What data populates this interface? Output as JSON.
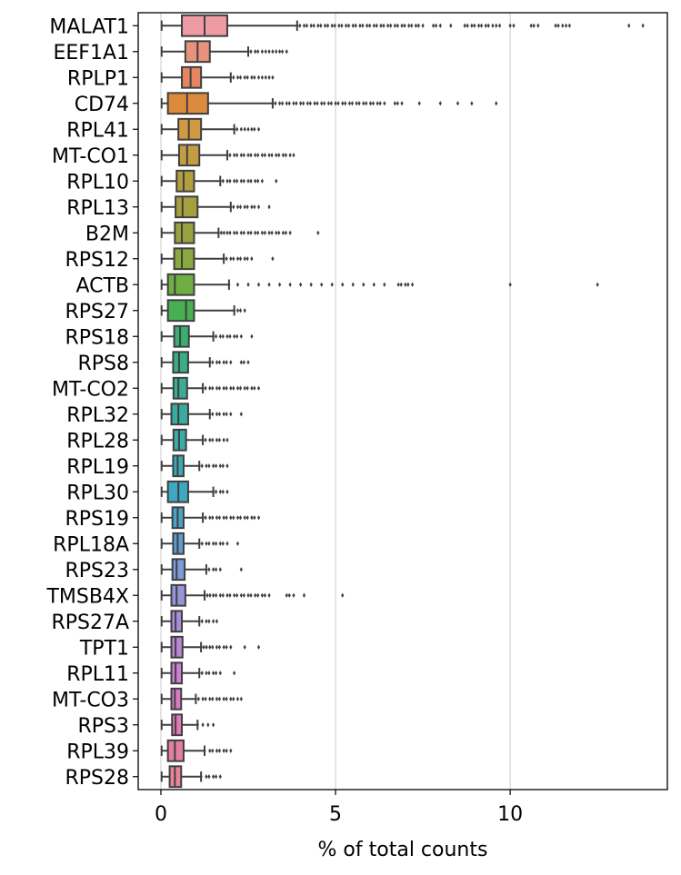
{
  "chart_data": {
    "type": "box",
    "orientation": "horizontal",
    "title": "",
    "xlabel": "% of total counts",
    "ylabel": "",
    "xlim": [
      -0.65,
      14.5
    ],
    "xticks": [
      0,
      5,
      10
    ],
    "grid": "vertical",
    "legend": "none",
    "categories": [
      "MALAT1",
      "EEF1A1",
      "RPLP1",
      "CD74",
      "RPL41",
      "MT-CO1",
      "RPL10",
      "RPL13",
      "B2M",
      "RPS12",
      "ACTB",
      "RPS27",
      "RPS18",
      "RPS8",
      "MT-CO2",
      "RPL32",
      "RPL28",
      "RPL19",
      "RPL30",
      "RPS19",
      "RPL18A",
      "RPS23",
      "TMSB4X",
      "RPS27A",
      "TPT1",
      "RPL11",
      "MT-CO3",
      "RPS3",
      "RPL39",
      "RPS28"
    ],
    "boxes": [
      {
        "whisker_low": 0.02,
        "q1": 0.6,
        "median": 1.25,
        "q3": 1.9,
        "whisker_high": 3.9,
        "color": "#ee9ba3",
        "outliers": [
          3.9,
          4.1,
          4.3,
          4.5,
          4.7,
          4.9,
          5.1,
          5.3,
          5.5,
          5.7,
          5.9,
          6.1,
          6.3,
          6.5,
          6.7,
          6.9,
          7.1,
          7.3,
          7.5,
          7.8,
          8.0,
          8.3,
          8.7,
          8.9,
          9.1,
          9.3,
          9.5,
          9.6,
          9.7,
          10.0,
          10.1,
          10.6,
          10.8,
          11.3,
          11.5,
          11.6,
          11.7,
          13.4,
          13.8
        ]
      },
      {
        "whisker_low": 0.02,
        "q1": 0.7,
        "median": 1.05,
        "q3": 1.4,
        "whisker_high": 2.5,
        "color": "#e8927e",
        "outliers": [
          2.5,
          2.7,
          2.9,
          3.0,
          3.1,
          3.2,
          3.3,
          3.4,
          3.6
        ]
      },
      {
        "whisker_low": 0.02,
        "q1": 0.6,
        "median": 0.85,
        "q3": 1.15,
        "whisker_high": 2.0,
        "color": "#e4865f",
        "outliers": [
          2.0,
          2.2,
          2.4,
          2.6,
          2.8,
          2.9,
          3.0,
          3.1,
          3.2
        ]
      },
      {
        "whisker_low": 0.02,
        "q1": 0.2,
        "median": 0.75,
        "q3": 1.35,
        "whisker_high": 3.2,
        "color": "#dc8a3d",
        "outliers": [
          3.2,
          3.4,
          3.6,
          3.8,
          4.0,
          4.2,
          4.4,
          4.6,
          4.8,
          5.0,
          5.2,
          5.4,
          5.6,
          5.8,
          6.0,
          6.2,
          6.4,
          6.7,
          6.9,
          7.4,
          8.0,
          8.5,
          8.9,
          9.6
        ]
      },
      {
        "whisker_low": 0.02,
        "q1": 0.5,
        "median": 0.8,
        "q3": 1.15,
        "whisker_high": 2.1,
        "color": "#d09a45",
        "outliers": [
          2.1,
          2.3,
          2.4,
          2.5,
          2.6,
          2.8
        ]
      },
      {
        "whisker_low": 0.02,
        "q1": 0.52,
        "median": 0.75,
        "q3": 1.1,
        "whisker_high": 1.9,
        "color": "#c39d42",
        "outliers": [
          1.9,
          2.1,
          2.3,
          2.5,
          2.7,
          2.9,
          3.1,
          3.3,
          3.5,
          3.7,
          3.8
        ]
      },
      {
        "whisker_low": 0.02,
        "q1": 0.45,
        "median": 0.65,
        "q3": 0.95,
        "whisker_high": 1.7,
        "color": "#b39e3e",
        "outliers": [
          1.7,
          1.9,
          2.1,
          2.3,
          2.5,
          2.7,
          2.9,
          3.3
        ]
      },
      {
        "whisker_low": 0.02,
        "q1": 0.42,
        "median": 0.62,
        "q3": 1.05,
        "whisker_high": 2.0,
        "color": "#a69f3e",
        "outliers": [
          2.0,
          2.2,
          2.4,
          2.6,
          2.8,
          3.1
        ]
      },
      {
        "whisker_low": 0.02,
        "q1": 0.4,
        "median": 0.6,
        "q3": 0.95,
        "whisker_high": 1.65,
        "color": "#98a23f",
        "outliers": [
          1.65,
          1.9,
          2.1,
          2.3,
          2.5,
          2.7,
          2.9,
          3.1,
          3.3,
          3.5,
          3.7,
          4.5
        ]
      },
      {
        "whisker_low": 0.02,
        "q1": 0.38,
        "median": 0.6,
        "q3": 0.95,
        "whisker_high": 1.8,
        "color": "#8aa83f",
        "outliers": [
          1.8,
          2.0,
          2.2,
          2.4,
          2.6,
          3.2
        ]
      },
      {
        "whisker_low": 0.02,
        "q1": 0.2,
        "median": 0.4,
        "q3": 0.95,
        "whisker_high": 1.95,
        "color": "#6fae42",
        "outliers": [
          1.95,
          2.2,
          2.5,
          2.8,
          3.1,
          3.4,
          3.7,
          4.0,
          4.3,
          4.6,
          4.9,
          5.2,
          5.5,
          5.8,
          6.1,
          6.4,
          6.8,
          7.0,
          7.2,
          10.0,
          12.5
        ]
      },
      {
        "whisker_low": 0.02,
        "q1": 0.2,
        "median": 0.72,
        "q3": 0.95,
        "whisker_high": 2.1,
        "color": "#46b053",
        "outliers": [
          2.1,
          2.2,
          2.4
        ]
      },
      {
        "whisker_low": 0.02,
        "q1": 0.38,
        "median": 0.55,
        "q3": 0.8,
        "whisker_high": 1.5,
        "color": "#3aaf72",
        "outliers": [
          1.5,
          1.7,
          1.9,
          2.1,
          2.3,
          2.6
        ]
      },
      {
        "whisker_low": 0.02,
        "q1": 0.35,
        "median": 0.52,
        "q3": 0.78,
        "whisker_high": 1.4,
        "color": "#39ae86",
        "outliers": [
          1.4,
          1.6,
          1.8,
          2.0,
          2.3,
          2.5
        ]
      },
      {
        "whisker_low": 0.02,
        "q1": 0.36,
        "median": 0.5,
        "q3": 0.75,
        "whisker_high": 1.2,
        "color": "#3aad94",
        "outliers": [
          1.2,
          1.4,
          1.6,
          1.8,
          2.0,
          2.2,
          2.4,
          2.6,
          2.8
        ]
      },
      {
        "whisker_low": 0.02,
        "q1": 0.3,
        "median": 0.5,
        "q3": 0.78,
        "whisker_high": 1.4,
        "color": "#3aac9f",
        "outliers": [
          1.4,
          1.6,
          1.8,
          2.0,
          2.3
        ]
      },
      {
        "whisker_low": 0.02,
        "q1": 0.36,
        "median": 0.52,
        "q3": 0.72,
        "whisker_high": 1.2,
        "color": "#3bab aa",
        "outliers": [
          1.2,
          1.4,
          1.6,
          1.8,
          1.9
        ]
      },
      {
        "whisker_low": 0.02,
        "q1": 0.35,
        "median": 0.48,
        "q3": 0.65,
        "whisker_high": 1.1,
        "color": "#3ba9b6",
        "outliers": [
          1.1,
          1.3,
          1.5,
          1.7,
          1.9
        ]
      },
      {
        "whisker_low": 0.02,
        "q1": 0.2,
        "median": 0.5,
        "q3": 0.78,
        "whisker_high": 1.5,
        "color": "#3ea7c2",
        "outliers": [
          1.5,
          1.7,
          1.9
        ]
      },
      {
        "whisker_low": 0.02,
        "q1": 0.33,
        "median": 0.48,
        "q3": 0.65,
        "whisker_high": 1.2,
        "color": "#4aa3cc",
        "outliers": [
          1.2,
          1.4,
          1.6,
          1.8,
          2.0,
          2.2,
          2.4,
          2.6,
          2.8
        ]
      },
      {
        "whisker_low": 0.02,
        "q1": 0.35,
        "median": 0.48,
        "q3": 0.65,
        "whisker_high": 1.1,
        "color": "#5b9fd4",
        "outliers": [
          1.1,
          1.3,
          1.5,
          1.7,
          1.9,
          2.2
        ]
      },
      {
        "whisker_low": 0.02,
        "q1": 0.33,
        "median": 0.45,
        "q3": 0.68,
        "whisker_high": 1.3,
        "color": "#7d9bd9",
        "outliers": [
          1.3,
          1.5,
          1.7,
          2.3
        ]
      },
      {
        "whisker_low": 0.02,
        "q1": 0.3,
        "median": 0.45,
        "q3": 0.7,
        "whisker_high": 1.25,
        "color": "#9694da",
        "outliers": [
          1.25,
          1.5,
          1.7,
          1.9,
          2.1,
          2.3,
          2.5,
          2.7,
          2.9,
          3.1,
          3.6,
          3.8,
          4.1,
          5.2
        ]
      },
      {
        "whisker_low": 0.02,
        "q1": 0.3,
        "median": 0.42,
        "q3": 0.6,
        "whisker_high": 1.1,
        "color": "#a98dd9",
        "outliers": [
          1.1,
          1.3,
          1.5,
          1.6
        ]
      },
      {
        "whisker_low": 0.02,
        "q1": 0.3,
        "median": 0.42,
        "q3": 0.62,
        "whisker_high": 1.15,
        "color": "#bb86d6",
        "outliers": [
          1.15,
          1.4,
          1.6,
          1.8,
          2.0,
          2.4,
          2.8
        ]
      },
      {
        "whisker_low": 0.02,
        "q1": 0.3,
        "median": 0.42,
        "q3": 0.6,
        "whisker_high": 1.1,
        "color": "#cd7fd2",
        "outliers": [
          1.1,
          1.3,
          1.5,
          1.7,
          2.1
        ]
      },
      {
        "whisker_low": 0.02,
        "q1": 0.3,
        "median": 0.4,
        "q3": 0.58,
        "whisker_high": 1.0,
        "color": "#d87bc5",
        "outliers": [
          1.0,
          1.2,
          1.4,
          1.6,
          1.8,
          2.0,
          2.2,
          2.3
        ]
      },
      {
        "whisker_low": 0.02,
        "q1": 0.32,
        "median": 0.42,
        "q3": 0.6,
        "whisker_high": 1.05,
        "color": "#df7ab4",
        "outliers": [
          1.05,
          1.2,
          1.35,
          1.5
        ]
      },
      {
        "whisker_low": 0.02,
        "q1": 0.2,
        "median": 0.4,
        "q3": 0.65,
        "whisker_high": 1.25,
        "color": "#e37ea3",
        "outliers": [
          1.25,
          1.4,
          1.6,
          1.8,
          2.0
        ]
      },
      {
        "whisker_low": 0.02,
        "q1": 0.25,
        "median": 0.4,
        "q3": 0.58,
        "whisker_high": 1.15,
        "color": "#e7849a",
        "outliers": [
          1.15,
          1.3,
          1.5,
          1.7
        ]
      }
    ]
  }
}
